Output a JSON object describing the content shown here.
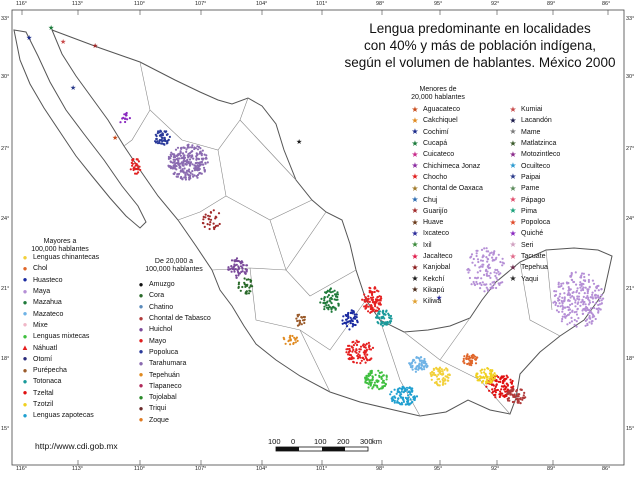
{
  "title": {
    "line1": "Lengua predominante en localidades",
    "line2": "con 40% y más de población indígena,",
    "line3": "según el volumen de hablantes. México 2000"
  },
  "url": "http://www.cdi.gob.mx",
  "graticule": {
    "top": [
      "116°",
      "113°",
      "110°",
      "107°",
      "104°",
      "101°",
      "98°",
      "95°",
      "92°",
      "89°",
      "86°"
    ],
    "bottom": [
      "116°",
      "113°",
      "110°",
      "107°",
      "104°",
      "101°",
      "98°",
      "95°",
      "92°",
      "89°",
      "86°"
    ],
    "left": [
      "33°",
      "30°",
      "27°",
      "24°",
      "21°",
      "18°",
      "15°"
    ],
    "right": [
      "33°",
      "30°",
      "27°",
      "24°",
      "21°",
      "18°",
      "15°"
    ]
  },
  "scale": {
    "labels": [
      "100",
      "0",
      "100",
      "200",
      "300"
    ],
    "unit": "km"
  },
  "legend": {
    "mayores": {
      "heading1": "Mayores a",
      "heading2": "100,000 hablantes",
      "items": [
        {
          "label": "Lenguas chinantecas",
          "color": "#f2d03a",
          "symbol": "dot"
        },
        {
          "label": "Chol",
          "color": "#e0662a",
          "symbol": "dot"
        },
        {
          "label": "Huasteco",
          "color": "#1a2aa0",
          "symbol": "dot"
        },
        {
          "label": "Maya",
          "color": "#b58fd6",
          "symbol": "dot"
        },
        {
          "label": "Mazahua",
          "color": "#1f7a3a",
          "symbol": "dot"
        },
        {
          "label": "Mazateco",
          "color": "#6fb3e6",
          "symbol": "dot"
        },
        {
          "label": "Mixe",
          "color": "#f0b8c8",
          "symbol": "dot"
        },
        {
          "label": "Lenguas mixtecas",
          "color": "#3fbf3f",
          "symbol": "dot"
        },
        {
          "label": "Náhuatl",
          "color": "#e52020",
          "symbol": "triangle"
        },
        {
          "label": "Otomí",
          "color": "#2a2a7a",
          "symbol": "dot"
        },
        {
          "label": "Purépecha",
          "color": "#9a5a2a",
          "symbol": "dot"
        },
        {
          "label": "Totonaca",
          "color": "#1a9a9a",
          "symbol": "dot"
        },
        {
          "label": "Tzeltal",
          "color": "#e01010",
          "symbol": "dot"
        },
        {
          "label": "Tzotzil",
          "color": "#f0d020",
          "symbol": "dot"
        },
        {
          "label": "Lenguas zapotecas",
          "color": "#20a0d0",
          "symbol": "dot"
        }
      ]
    },
    "de20a100": {
      "heading1": "De 20,000 a",
      "heading2": "100,000 hablantes",
      "items": [
        {
          "label": "Amuzgo",
          "color": "#111111",
          "symbol": "dot"
        },
        {
          "label": "Cora",
          "color": "#2a6a2a",
          "symbol": "dot"
        },
        {
          "label": "Chatino",
          "color": "#5a8aba",
          "symbol": "dot"
        },
        {
          "label": "Chontal de Tabasco",
          "color": "#b03a3a",
          "symbol": "dot"
        },
        {
          "label": "Huichol",
          "color": "#7a4a9a",
          "symbol": "dot"
        },
        {
          "label": "Mayo",
          "color": "#e02020",
          "symbol": "dot"
        },
        {
          "label": "Popoluca",
          "color": "#2a3a9a",
          "symbol": "dot"
        },
        {
          "label": "Tarahumara",
          "color": "#8a6ab0",
          "symbol": "dot"
        },
        {
          "label": "Tepehuán",
          "color": "#e08a20",
          "symbol": "dot"
        },
        {
          "label": "Tlapaneco",
          "color": "#b02a5a",
          "symbol": "dot"
        },
        {
          "label": "Tojolabal",
          "color": "#2a8a2a",
          "symbol": "dot"
        },
        {
          "label": "Triqui",
          "color": "#6a2a2a",
          "symbol": "dot"
        },
        {
          "label": "Zoque",
          "color": "#e07a20",
          "symbol": "dot"
        }
      ]
    },
    "menores": {
      "heading1": "Menores de",
      "heading2": "20,000 hablantes",
      "col1": [
        {
          "label": "Aguacateco",
          "color": "#c84a1a",
          "symbol": "star"
        },
        {
          "label": "Cakchiquel",
          "color": "#e08a20",
          "symbol": "star"
        },
        {
          "label": "Cochimí",
          "color": "#1a2a8a",
          "symbol": "star"
        },
        {
          "label": "Cucapá",
          "color": "#1a7a3a",
          "symbol": "star"
        },
        {
          "label": "Cuicateco",
          "color": "#c82a8a",
          "symbol": "star"
        },
        {
          "label": "Chichimeca Jonaz",
          "color": "#8a2aa0",
          "symbol": "star"
        },
        {
          "label": "Chocho",
          "color": "#e01a1a",
          "symbol": "star"
        },
        {
          "label": "Chontal de Oaxaca",
          "color": "#a07a2a",
          "symbol": "star"
        },
        {
          "label": "Chuj",
          "color": "#2a6ab0",
          "symbol": "star"
        },
        {
          "label": "Guarijío",
          "color": "#a02a2a",
          "symbol": "star"
        },
        {
          "label": "Huave",
          "color": "#6a3a1a",
          "symbol": "star"
        },
        {
          "label": "Ixcateco",
          "color": "#2a2a9a",
          "symbol": "star"
        },
        {
          "label": "Ixil",
          "color": "#3a8a3a",
          "symbol": "star"
        },
        {
          "label": "Jacalteco",
          "color": "#e01a4a",
          "symbol": "star"
        },
        {
          "label": "Kanjobal",
          "color": "#8a1a1a",
          "symbol": "star"
        },
        {
          "label": "Kekchí",
          "color": "#1a1a1a",
          "symbol": "star"
        },
        {
          "label": "Kikapú",
          "color": "#4a2a1a",
          "symbol": "star"
        },
        {
          "label": "Kiliwa",
          "color": "#e0a030",
          "symbol": "star"
        }
      ],
      "col2": [
        {
          "label": "Kumiai",
          "color": "#c84a4a",
          "symbol": "star"
        },
        {
          "label": "Lacandón",
          "color": "#1a1a4a",
          "symbol": "star"
        },
        {
          "label": "Mame",
          "color": "#7a7a7a",
          "symbol": "star"
        },
        {
          "label": "Matlatzinca",
          "color": "#3a5a2a",
          "symbol": "star"
        },
        {
          "label": "Motozintleco",
          "color": "#8a2a8a",
          "symbol": "star"
        },
        {
          "label": "Ocuilteco",
          "color": "#2a9ad0",
          "symbol": "star"
        },
        {
          "label": "Paipai",
          "color": "#2a3a8a",
          "symbol": "star"
        },
        {
          "label": "Pame",
          "color": "#5a8a5a",
          "symbol": "star"
        },
        {
          "label": "Pápago",
          "color": "#e04a6a",
          "symbol": "star"
        },
        {
          "label": "Pima",
          "color": "#1aa07a",
          "symbol": "star"
        },
        {
          "label": "Popoloca",
          "color": "#e04a2a",
          "symbol": "star"
        },
        {
          "label": "Quiché",
          "color": "#8a2ac0",
          "symbol": "star"
        },
        {
          "label": "Seri",
          "color": "#d0a0c0",
          "symbol": "star"
        },
        {
          "label": "Tacuate",
          "color": "#e06a8a",
          "symbol": "star"
        },
        {
          "label": "Tepehua",
          "color": "#6a2a4a",
          "symbol": "star"
        },
        {
          "label": "Yaqui",
          "color": "#2a2a2a",
          "symbol": "star"
        }
      ]
    }
  },
  "colors": {
    "land_outline": "#555555",
    "state_border": "#777777",
    "graticule": "#444444"
  }
}
